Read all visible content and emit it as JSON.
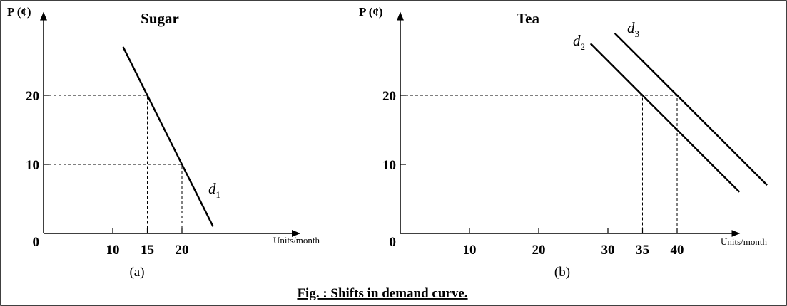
{
  "chart_data": [
    {
      "type": "line",
      "title": "Sugar",
      "y_label": "P (¢)",
      "x_label": "Units/month",
      "panel_label": "(a)",
      "xlim": [
        0,
        37
      ],
      "ylim": [
        0,
        32
      ],
      "xticks": [
        10,
        15,
        20
      ],
      "yticks": [
        0,
        10,
        20
      ],
      "series": [
        {
          "name": "d1",
          "color": "#000000",
          "x": [
            11.5,
            24.5
          ],
          "values": [
            27,
            1
          ]
        }
      ],
      "guides": [
        {
          "x": 15,
          "y": 20
        },
        {
          "x": 20,
          "y": 10
        }
      ]
    },
    {
      "type": "line",
      "title": "Tea",
      "y_label": "P (¢)",
      "x_label": "Units/month",
      "panel_label": "(b)",
      "xlim": [
        0,
        49
      ],
      "ylim": [
        0,
        32
      ],
      "xticks": [
        10,
        20,
        30,
        35,
        40
      ],
      "yticks": [
        0,
        10,
        20
      ],
      "series": [
        {
          "name": "d2",
          "color": "#000000",
          "x": [
            27.5,
            49
          ],
          "values": [
            27.5,
            6
          ]
        },
        {
          "name": "d3",
          "color": "#000000",
          "x": [
            31,
            53
          ],
          "values": [
            29,
            7
          ]
        }
      ],
      "guides": [
        {
          "x": 35,
          "y": 20
        },
        {
          "x": 40,
          "y": 20
        }
      ]
    }
  ],
  "caption": "Fig. : Shifts in demand curve."
}
